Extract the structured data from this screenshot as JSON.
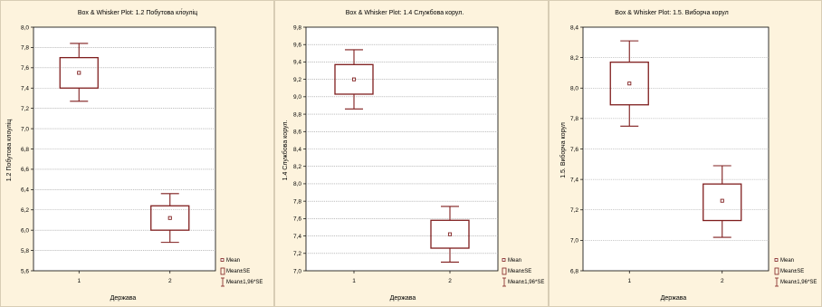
{
  "colors": {
    "panel_bg": "#fdf3dd",
    "plot_bg": "#ffffff",
    "grid": "#9a9a9a",
    "box": "#7f1d1d",
    "mean_marker": "#7f1d1d"
  },
  "legend": {
    "mean_label": "Mean",
    "se_label": "Mean±SE",
    "ci_label": "Mean±1,96*SE"
  },
  "chart_data": [
    {
      "type": "box",
      "title": "Box & Whisker Plot: 1.2 Побутова кл́оуліц",
      "xlabel": "Держава",
      "ylabel": "1.2 Побутова клоуліц",
      "ylim": [
        5.6,
        8.0
      ],
      "yticks": [
        "5,6",
        "5,8",
        "6,0",
        "6,2",
        "6,4",
        "6,6",
        "6,8",
        "7,0",
        "7,2",
        "7,4",
        "7,6",
        "7,8",
        "8,0"
      ],
      "yticks_values": [
        5.6,
        5.8,
        6.0,
        6.2,
        6.4,
        6.6,
        6.8,
        7.0,
        7.2,
        7.4,
        7.6,
        7.8,
        8.0
      ],
      "categories": [
        "1",
        "2"
      ],
      "grid": true,
      "legend_position": "bottom-right",
      "groups": [
        {
          "category": "1",
          "mean": 7.55,
          "se_low": 7.4,
          "se_high": 7.7,
          "ci_low": 7.27,
          "ci_high": 7.84
        },
        {
          "category": "2",
          "mean": 6.12,
          "se_low": 6.0,
          "se_high": 6.24,
          "ci_low": 5.88,
          "ci_high": 6.36
        }
      ]
    },
    {
      "type": "box",
      "title": "Box & Whisker Plot: 1.4 Службова корул.",
      "xlabel": "Держава",
      "ylabel": "1.4 Службова корул.",
      "ylim": [
        7.0,
        9.8
      ],
      "yticks": [
        "7,0",
        "7,2",
        "7,4",
        "7,6",
        "7,8",
        "8,0",
        "8,2",
        "8,4",
        "8,6",
        "8,8",
        "9,0",
        "9,2",
        "9,4",
        "9,6",
        "9,8"
      ],
      "yticks_values": [
        7.0,
        7.2,
        7.4,
        7.6,
        7.8,
        8.0,
        8.2,
        8.4,
        8.6,
        8.8,
        9.0,
        9.2,
        9.4,
        9.6,
        9.8
      ],
      "categories": [
        "1",
        "2"
      ],
      "grid": true,
      "legend_position": "bottom-right",
      "groups": [
        {
          "category": "1",
          "mean": 9.2,
          "se_low": 9.03,
          "se_high": 9.37,
          "ci_low": 8.86,
          "ci_high": 9.54
        },
        {
          "category": "2",
          "mean": 7.42,
          "se_low": 7.26,
          "se_high": 7.58,
          "ci_low": 7.1,
          "ci_high": 7.74
        }
      ]
    },
    {
      "type": "box",
      "title": "Box & Whisker Plot: 1.5. Виборча корул",
      "xlabel": "Держава",
      "ylabel": "1.5. Виборча корул",
      "ylim": [
        6.8,
        8.4
      ],
      "yticks": [
        "6,8",
        "7,0",
        "7,2",
        "7,4",
        "7,6",
        "7,8",
        "8,0",
        "8,2",
        "8,4"
      ],
      "yticks_values": [
        6.8,
        7.0,
        7.2,
        7.4,
        7.6,
        7.8,
        8.0,
        8.2,
        8.4
      ],
      "categories": [
        "1",
        "2"
      ],
      "grid": true,
      "legend_position": "bottom-right",
      "groups": [
        {
          "category": "1",
          "mean": 8.03,
          "se_low": 7.89,
          "se_high": 8.17,
          "ci_low": 7.75,
          "ci_high": 8.31
        },
        {
          "category": "2",
          "mean": 7.26,
          "se_low": 7.13,
          "se_high": 7.37,
          "ci_low": 7.02,
          "ci_high": 7.49
        }
      ]
    }
  ]
}
